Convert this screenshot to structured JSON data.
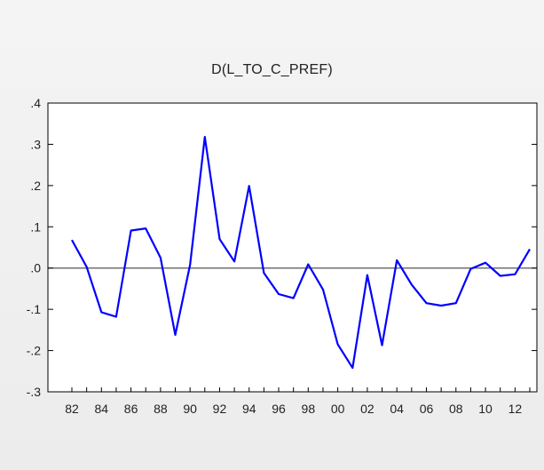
{
  "chart_data": {
    "type": "line",
    "title": "D(L_TO_C_PREF)",
    "xlabel": "",
    "ylabel": "",
    "x_start_year": 1982,
    "x_end_year": 2013,
    "x_tick_labels": [
      "82",
      "84",
      "86",
      "88",
      "90",
      "92",
      "94",
      "96",
      "98",
      "00",
      "02",
      "04",
      "06",
      "08",
      "10",
      "12"
    ],
    "y_tick_labels": [
      ".4",
      ".3",
      ".2",
      ".1",
      ".0",
      "-.1",
      "-.2",
      "-.3"
    ],
    "ylim": [
      -0.3,
      0.4
    ],
    "zero_line": true,
    "grid": false,
    "series": [
      {
        "name": "",
        "color": "#0000ff",
        "x": [
          1982,
          1983,
          1984,
          1985,
          1986,
          1987,
          1988,
          1989,
          1990,
          1991,
          1992,
          1993,
          1994,
          1995,
          1996,
          1997,
          1998,
          1999,
          2000,
          2001,
          2002,
          2003,
          2004,
          2005,
          2006,
          2007,
          2008,
          2009,
          2010,
          2011,
          2012,
          2013
        ],
        "values": [
          0.068,
          0.003,
          -0.107,
          -0.118,
          0.091,
          0.096,
          0.025,
          -0.162,
          0.008,
          0.318,
          0.07,
          0.016,
          0.199,
          -0.012,
          -0.063,
          -0.073,
          0.009,
          -0.052,
          -0.185,
          -0.242,
          -0.017,
          -0.187,
          0.019,
          -0.04,
          -0.085,
          -0.091,
          -0.085,
          -0.002,
          0.013,
          -0.019,
          -0.015,
          0.046
        ]
      }
    ]
  }
}
